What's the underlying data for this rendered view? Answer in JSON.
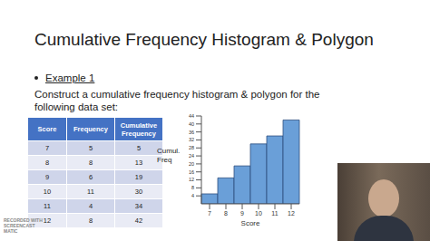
{
  "title": "Cumulative Frequency Histogram & Polygon",
  "bullet": "Example 1",
  "instruction": "Construct a cumulative frequency histogram & polygon for the following data set:",
  "table": {
    "header": [
      "Score",
      "Frequency",
      "Cumulative Frequency"
    ],
    "rows": [
      [
        7,
        5,
        5
      ],
      [
        8,
        8,
        13
      ],
      [
        9,
        6,
        19
      ],
      [
        10,
        11,
        30
      ],
      [
        11,
        4,
        34
      ],
      [
        12,
        8,
        42
      ]
    ]
  },
  "chart_data": {
    "type": "bar",
    "categories": [
      7,
      8,
      9,
      10,
      11,
      12
    ],
    "values": [
      5,
      13,
      19,
      30,
      34,
      42
    ],
    "color": "#6a9fd8",
    "x_label": "Score",
    "y_label": "Cumul. Freq",
    "ylim": [
      0,
      44
    ],
    "yticks": [
      4,
      8,
      12,
      16,
      20,
      24,
      28,
      32,
      36,
      40,
      44
    ],
    "grid": false
  },
  "watermark": [
    "RECORDED WITH",
    "SCREENCAST",
    "MATIC"
  ]
}
